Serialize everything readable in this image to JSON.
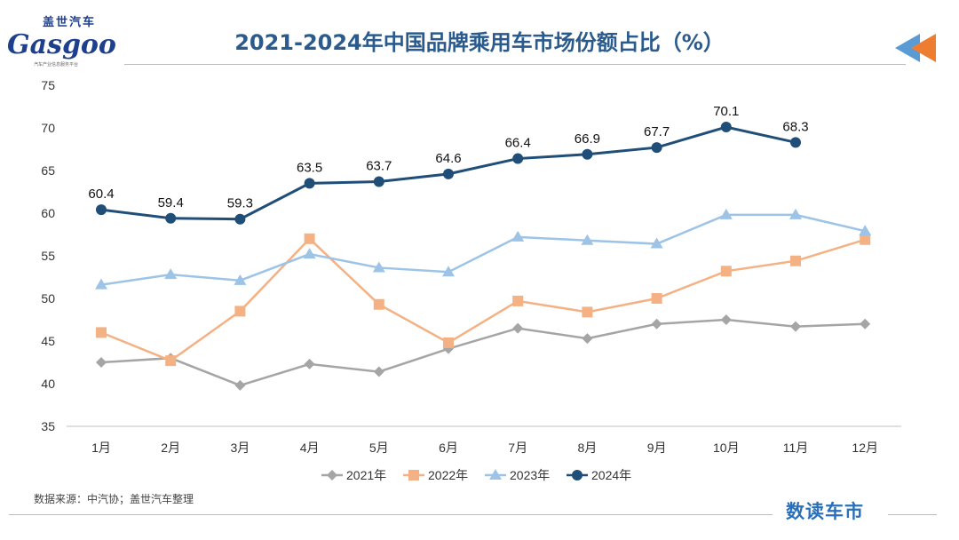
{
  "header": {
    "logo_cn": "盖世汽车",
    "logo_en": "Gasgoo",
    "logo_sub": "汽车产业信息服务平台",
    "title": "2021-2024年中国品牌乘用车市场份额占比（%）"
  },
  "footer": {
    "source": "数据来源：中汽协；盖世汽车整理",
    "brand": "数读车市"
  },
  "chart_data": {
    "type": "line",
    "title": "2021-2024年中国品牌乘用车市场份额占比（%）",
    "categories": [
      "1月",
      "2月",
      "3月",
      "4月",
      "5月",
      "6月",
      "7月",
      "8月",
      "9月",
      "10月",
      "11月",
      "12月"
    ],
    "ylim": [
      35,
      75
    ],
    "yticks": [
      35,
      40,
      45,
      50,
      55,
      60,
      65,
      70,
      75
    ],
    "grid": false,
    "legend": "bottom",
    "series": [
      {
        "name": "2021年",
        "color": "#a5a5a5",
        "marker": "diamond",
        "values": [
          42.5,
          43.0,
          39.8,
          42.3,
          41.4,
          44.1,
          46.5,
          45.3,
          47.0,
          47.5,
          46.7,
          47.0
        ]
      },
      {
        "name": "2022年",
        "color": "#f4b183",
        "marker": "square",
        "values": [
          46.0,
          42.7,
          48.5,
          57.0,
          49.3,
          44.8,
          49.7,
          48.4,
          50.0,
          53.2,
          54.4,
          56.9
        ]
      },
      {
        "name": "2023年",
        "color": "#9dc3e6",
        "marker": "triangle",
        "values": [
          51.6,
          52.8,
          52.1,
          55.2,
          53.6,
          53.1,
          57.2,
          56.8,
          56.4,
          59.8,
          59.8,
          57.9
        ]
      },
      {
        "name": "2024年",
        "color": "#1f4e79",
        "marker": "circle",
        "labels": true,
        "values": [
          60.4,
          59.4,
          59.3,
          63.5,
          63.7,
          64.6,
          66.4,
          66.9,
          67.7,
          70.1,
          68.3,
          null
        ]
      }
    ]
  }
}
